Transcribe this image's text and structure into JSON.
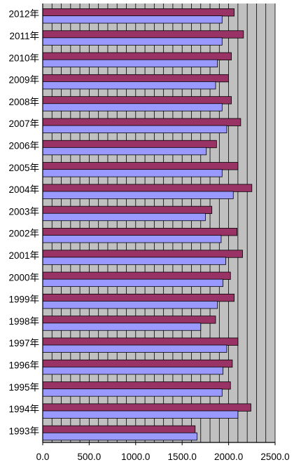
{
  "chart_data": {
    "type": "bar",
    "orientation": "horizontal",
    "categories": [
      "2012年",
      "2011年",
      "2010年",
      "2009年",
      "2008年",
      "2007年",
      "2006年",
      "2005年",
      "2004年",
      "2003年",
      "2002年",
      "2001年",
      "2000年",
      "1999年",
      "1998年",
      "1997年",
      "1996年",
      "1995年",
      "1994年",
      "1993年"
    ],
    "series": [
      {
        "values": [
          2060,
          2160,
          2030,
          2000,
          2030,
          2130,
          1870,
          2100,
          2250,
          1820,
          2090,
          2150,
          2020,
          2060,
          1860,
          2100,
          2040,
          2020,
          2240,
          1640
        ]
      },
      {
        "values": [
          1930,
          1930,
          1880,
          1860,
          1930,
          1980,
          1760,
          1930,
          2050,
          1750,
          1920,
          1970,
          1940,
          1880,
          1700,
          1980,
          1940,
          1930,
          2100,
          1660
        ]
      }
    ],
    "xlim": [
      0,
      2500
    ],
    "xticks": [
      "0.0",
      "500.0",
      "1000.0",
      "1500.0",
      "2000.0",
      "2500.0"
    ],
    "title": "",
    "xlabel": "",
    "ylabel": "",
    "grid": true,
    "colors": {
      "series1": "#993366",
      "series2": "#9999ff",
      "plot_background": "#c0c0c0",
      "gridline": "#000000",
      "axis_text": "#000000"
    }
  }
}
